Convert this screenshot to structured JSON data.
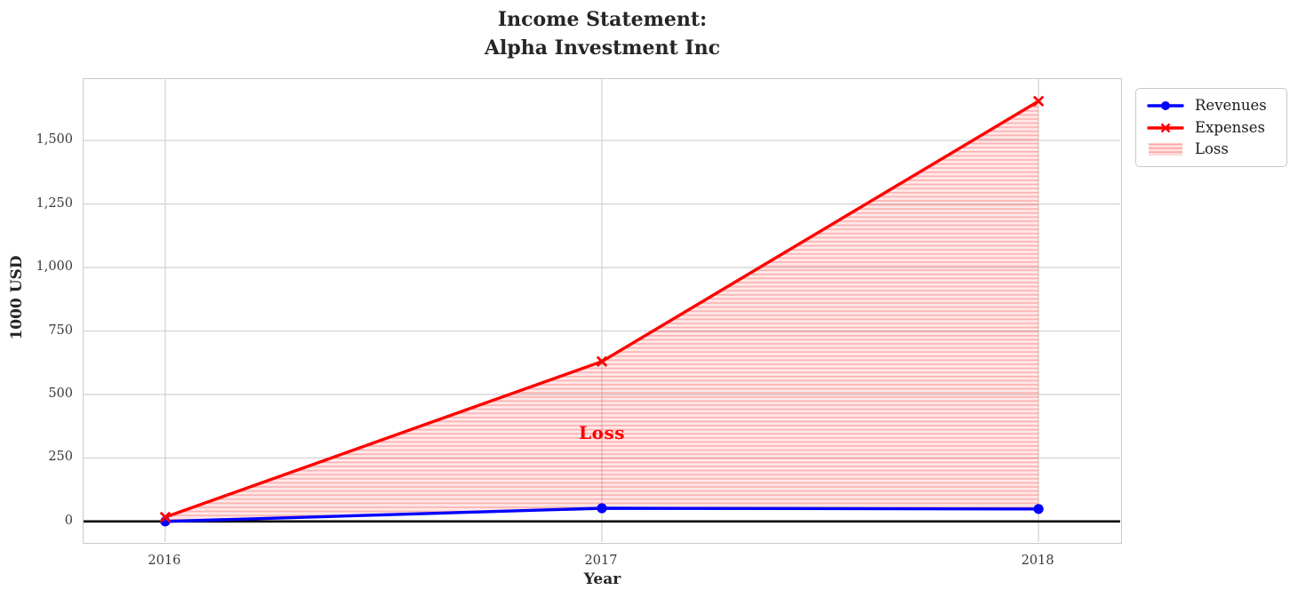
{
  "title": {
    "line1": "Income Statement:",
    "line2": "Alpha Investment Inc"
  },
  "chart_data": {
    "type": "line",
    "title": "Income Statement: Alpha Investment Inc",
    "xlabel": "Year",
    "ylabel": "1000 USD",
    "x": [
      2016,
      2017,
      2018
    ],
    "xtick_labels": [
      "2016",
      "2017",
      "2018"
    ],
    "series": [
      {
        "name": "Revenues",
        "color": "#0000ff",
        "marker": "circle",
        "values": [
          0,
          52,
          49
        ]
      },
      {
        "name": "Expenses",
        "color": "#ff0000",
        "marker": "x",
        "values": [
          17,
          630,
          1655
        ]
      }
    ],
    "fill_between": {
      "label": "Loss",
      "upper_series": "Expenses",
      "lower_series": "Revenues",
      "facecolor": "rgba(255,0,0,0.09)",
      "hatch": "-",
      "hatchcolor": "rgba(255,0,0,0.24)"
    },
    "annotation": {
      "text": "Loss",
      "x": 2017,
      "y": 350,
      "color": "#ff0000"
    },
    "yticks": [
      0,
      250,
      500,
      750,
      1000,
      1250,
      1500
    ],
    "ytick_labels": [
      "0",
      "250",
      "500",
      "750",
      "1,000",
      "1,250",
      "1,500"
    ],
    "ylim": [
      -81,
      1742
    ],
    "xlim": [
      2015.813,
      2018.187
    ],
    "grid": true,
    "gridcolor": "#d4d4d4",
    "zero_line": {
      "y": 0,
      "color": "#000000"
    },
    "legend_position": "upper-right-outside",
    "legend": [
      {
        "label": "Revenues",
        "swatch": "line-circle",
        "color": "#0000ff"
      },
      {
        "label": "Expenses",
        "swatch": "line-x",
        "color": "#ff0000"
      },
      {
        "label": "Loss",
        "swatch": "hatch",
        "color": "#f7c6c6"
      }
    ]
  }
}
